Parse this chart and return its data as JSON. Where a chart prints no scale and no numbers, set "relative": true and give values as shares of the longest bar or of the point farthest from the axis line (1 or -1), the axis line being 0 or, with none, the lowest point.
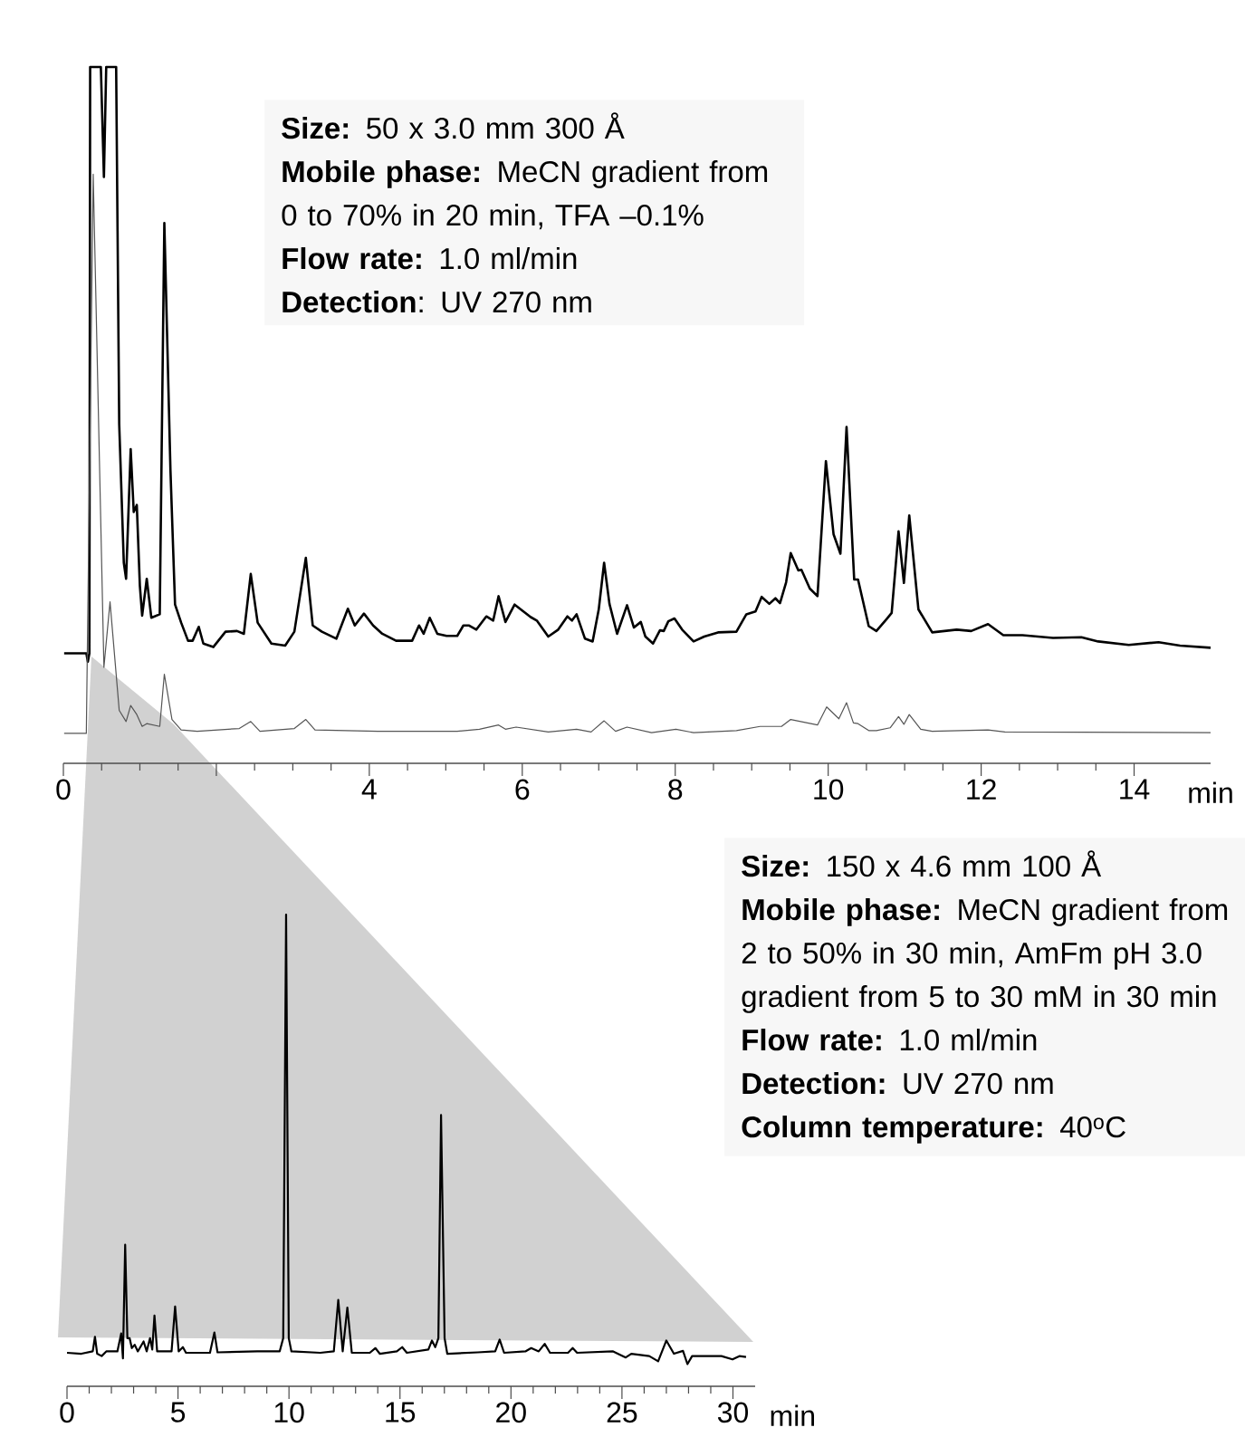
{
  "chart_data": [
    {
      "type": "line",
      "relative": true,
      "xlabel": "min",
      "xlim": [
        0,
        15
      ],
      "xticks": [
        0,
        {
          "value": 2,
          "label": null
        },
        4,
        6,
        8,
        10,
        12,
        14
      ],
      "series": [
        {
          "color": "#000000",
          "x": [
            0.01,
            0.3,
            0.32,
            0.34,
            0.35,
            0.49,
            0.53,
            0.56,
            0.69,
            0.73,
            0.79,
            0.82,
            0.88,
            0.92,
            0.96,
            1.0,
            1.03,
            1.09,
            1.15,
            1.26,
            1.32,
            1.4,
            1.46,
            1.54,
            1.63,
            1.69,
            1.77,
            1.83,
            1.96,
            2.12,
            2.27,
            2.36,
            2.45,
            2.54,
            2.72,
            2.9,
            3.02,
            3.17,
            3.26,
            3.38,
            3.57,
            3.72,
            3.81,
            3.93,
            4.05,
            4.17,
            4.35,
            4.56,
            4.65,
            4.71,
            4.79,
            4.89,
            5.01,
            5.15,
            5.23,
            5.3,
            5.4,
            5.53,
            5.62,
            5.69,
            5.78,
            5.9,
            6.11,
            6.19,
            6.34,
            6.47,
            6.59,
            6.65,
            6.71,
            6.82,
            6.92,
            7.0,
            7.07,
            7.14,
            7.24,
            7.37,
            7.46,
            7.55,
            7.61,
            7.71,
            7.8,
            7.85,
            7.91,
            7.99,
            8.09,
            8.24,
            8.38,
            8.56,
            8.8,
            8.93,
            9.05,
            9.13,
            9.23,
            9.31,
            9.37,
            9.45,
            9.51,
            9.61,
            9.65,
            9.76,
            9.86,
            9.97,
            10.07,
            10.16,
            10.24,
            10.34,
            10.39,
            10.53,
            10.63,
            10.77,
            10.83,
            10.92,
            10.99,
            11.06,
            11.18,
            11.36,
            11.68,
            11.87,
            12.09,
            12.29,
            12.54,
            12.94,
            13.31,
            13.53,
            13.93,
            14.32,
            14.6,
            15.0
          ],
          "values": [
            0.158,
            0.158,
            0.146,
            0.158,
            1.0,
            1.0,
            0.842,
            1.0,
            1.0,
            0.487,
            0.288,
            0.265,
            0.451,
            0.361,
            0.371,
            0.255,
            0.212,
            0.265,
            0.209,
            0.214,
            0.776,
            0.421,
            0.228,
            0.202,
            0.176,
            0.176,
            0.196,
            0.172,
            0.167,
            0.189,
            0.19,
            0.186,
            0.272,
            0.202,
            0.172,
            0.169,
            0.189,
            0.295,
            0.198,
            0.189,
            0.179,
            0.222,
            0.198,
            0.215,
            0.198,
            0.186,
            0.176,
            0.176,
            0.198,
            0.186,
            0.209,
            0.186,
            0.183,
            0.183,
            0.198,
            0.198,
            0.192,
            0.211,
            0.205,
            0.24,
            0.203,
            0.228,
            0.21,
            0.205,
            0.182,
            0.192,
            0.211,
            0.205,
            0.214,
            0.179,
            0.175,
            0.221,
            0.288,
            0.229,
            0.186,
            0.227,
            0.195,
            0.203,
            0.182,
            0.172,
            0.191,
            0.19,
            0.204,
            0.208,
            0.192,
            0.175,
            0.182,
            0.188,
            0.189,
            0.214,
            0.218,
            0.239,
            0.229,
            0.237,
            0.23,
            0.26,
            0.302,
            0.277,
            0.278,
            0.251,
            0.24,
            0.434,
            0.329,
            0.301,
            0.483,
            0.264,
            0.264,
            0.197,
            0.19,
            0.208,
            0.216,
            0.333,
            0.259,
            0.356,
            0.221,
            0.188,
            0.192,
            0.19,
            0.2,
            0.184,
            0.184,
            0.18,
            0.181,
            0.175,
            0.17,
            0.174,
            0.169,
            0.166
          ]
        },
        {
          "color": "#555555",
          "x": [
            0.01,
            0.3,
            0.39,
            0.53,
            0.61,
            0.73,
            0.82,
            0.88,
            0.96,
            1.03,
            1.09,
            1.26,
            1.32,
            1.42,
            1.54,
            1.75,
            2.3,
            2.45,
            2.57,
            3.02,
            3.17,
            3.29,
            4.11,
            4.85,
            5.15,
            5.44,
            5.69,
            5.78,
            5.92,
            6.34,
            6.71,
            6.9,
            7.07,
            7.22,
            7.37,
            7.69,
            8.01,
            8.24,
            8.8,
            9.11,
            9.39,
            9.51,
            9.86,
            9.98,
            10.14,
            10.24,
            10.33,
            10.39,
            10.53,
            10.63,
            10.81,
            10.92,
            10.99,
            11.06,
            11.21,
            11.36,
            12.09,
            12.31,
            15.0
          ],
          "values": [
            0.043,
            0.043,
            0.846,
            0.138,
            0.232,
            0.076,
            0.06,
            0.083,
            0.07,
            0.053,
            0.057,
            0.053,
            0.128,
            0.063,
            0.048,
            0.046,
            0.05,
            0.06,
            0.046,
            0.05,
            0.063,
            0.048,
            0.046,
            0.046,
            0.046,
            0.049,
            0.055,
            0.049,
            0.052,
            0.045,
            0.049,
            0.045,
            0.061,
            0.046,
            0.052,
            0.044,
            0.049,
            0.044,
            0.047,
            0.053,
            0.053,
            0.063,
            0.055,
            0.081,
            0.064,
            0.087,
            0.058,
            0.057,
            0.047,
            0.047,
            0.051,
            0.067,
            0.056,
            0.07,
            0.049,
            0.046,
            0.048,
            0.045,
            0.044
          ]
        }
      ],
      "annotations": [
        "**Size:** 50 x 3.0 mm 300 Å",
        "**Mobile phase:** MeCN gradient from 0 to 70% in 20 min, TFA –0.1%",
        "**Flow rate:** 1.0 ml/min",
        "**Detection**: UV 270 nm"
      ]
    },
    {
      "type": "line",
      "relative": true,
      "xlabel": "min",
      "xlim": [
        0,
        31
      ],
      "xticks": [
        0,
        5,
        10,
        15,
        20,
        25,
        30
      ],
      "color": "#000000",
      "x": [
        0,
        0.65,
        1.16,
        1.26,
        1.36,
        1.56,
        1.77,
        2.27,
        2.44,
        2.52,
        2.62,
        2.72,
        2.82,
        2.92,
        3.05,
        3.19,
        3.45,
        3.59,
        3.74,
        3.84,
        3.94,
        4.06,
        4.71,
        4.87,
        5.03,
        5.22,
        5.36,
        6.44,
        6.64,
        6.78,
        8.57,
        9.58,
        9.74,
        9.87,
        9.99,
        10.11,
        11.41,
        12.02,
        12.22,
        12.42,
        12.63,
        12.83,
        13.64,
        13.89,
        14.09,
        14.86,
        15.1,
        15.31,
        16.28,
        16.44,
        16.59,
        16.73,
        16.85,
        17.01,
        17.13,
        18.51,
        19.29,
        19.49,
        19.69,
        20.65,
        20.91,
        21.25,
        21.52,
        21.76,
        22.57,
        22.78,
        22.98,
        24.6,
        25.17,
        25.42,
        26.23,
        26.63,
        27.0,
        27.34,
        27.75,
        27.95,
        28.16,
        29.48,
        29.98,
        30.29,
        30.59
      ],
      "values": [
        0.071,
        0.069,
        0.074,
        0.105,
        0.069,
        0.064,
        0.074,
        0.074,
        0.112,
        0.059,
        0.3,
        0.102,
        0.102,
        0.081,
        0.088,
        0.074,
        0.095,
        0.074,
        0.102,
        0.078,
        0.15,
        0.074,
        0.074,
        0.169,
        0.074,
        0.083,
        0.071,
        0.071,
        0.114,
        0.072,
        0.074,
        0.074,
        0.102,
        1.0,
        0.102,
        0.074,
        0.071,
        0.074,
        0.183,
        0.074,
        0.167,
        0.071,
        0.071,
        0.081,
        0.069,
        0.074,
        0.083,
        0.071,
        0.078,
        0.097,
        0.083,
        0.102,
        0.575,
        0.102,
        0.069,
        0.072,
        0.074,
        0.099,
        0.071,
        0.074,
        0.081,
        0.074,
        0.09,
        0.071,
        0.071,
        0.081,
        0.071,
        0.074,
        0.061,
        0.069,
        0.064,
        0.053,
        0.097,
        0.069,
        0.075,
        0.047,
        0.064,
        0.064,
        0.057,
        0.064,
        0.062
      ],
      "annotations": [
        "**Size:** 150 x 4.6 mm 100 Å",
        "**Mobile phase:** MeCN gradient from 2 to 50% in 30 min, AmFm pH 3.0 gradient from 5 to 30 mM in 30 min",
        "**Flow rate:** 1.0 ml/min",
        "**Detection:** UV 270 nm",
        "**Column temperature:** 40$^{o}$C"
      ]
    }
  ]
}
